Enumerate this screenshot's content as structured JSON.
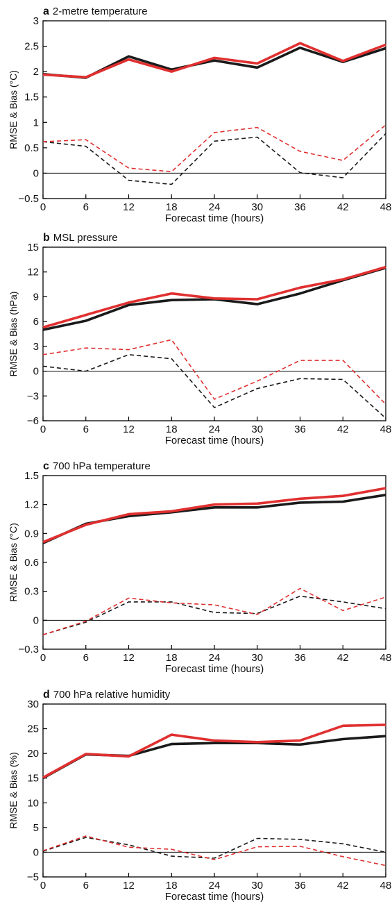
{
  "chart_data": [
    {
      "type": "line",
      "panel_letter": "a",
      "title": "2-metre temperature",
      "xlabel": "Forecast time (hours)",
      "ylabel": "RMSE & Bias (°C)",
      "x": [
        0,
        6,
        12,
        18,
        24,
        30,
        36,
        42,
        48
      ],
      "ylim": [
        -0.5,
        3
      ],
      "yticks": [
        -0.5,
        0,
        0.5,
        1,
        1.5,
        2,
        2.5,
        3
      ],
      "ytick_labels": [
        "−0.5",
        "0",
        "0.5",
        "1",
        "1.5",
        "2",
        "2.5",
        "3"
      ],
      "zero_line": true,
      "series": [
        {
          "color": "#1a1a1a",
          "style": "solid",
          "values": [
            1.95,
            1.88,
            2.3,
            2.04,
            2.22,
            2.08,
            2.47,
            2.19,
            2.46
          ]
        },
        {
          "color": "#e03030",
          "style": "solid",
          "values": [
            1.94,
            1.89,
            2.24,
            2.0,
            2.27,
            2.16,
            2.56,
            2.21,
            2.53
          ]
        },
        {
          "color": "#1a1a1a",
          "style": "dashed",
          "values": [
            0.62,
            0.53,
            -0.14,
            -0.22,
            0.63,
            0.71,
            0.01,
            -0.09,
            0.78
          ]
        },
        {
          "color": "#e03030",
          "style": "dashed",
          "values": [
            0.62,
            0.66,
            0.1,
            0.03,
            0.8,
            0.9,
            0.43,
            0.25,
            0.95
          ]
        }
      ]
    },
    {
      "type": "line",
      "panel_letter": "b",
      "title": "MSL pressure",
      "xlabel": "Forecast time (hours)",
      "ylabel": "RMSE & Bias (hPa)",
      "x": [
        0,
        6,
        12,
        18,
        24,
        30,
        36,
        42,
        48
      ],
      "ylim": [
        -6,
        15
      ],
      "yticks": [
        -6,
        -3,
        0,
        3,
        6,
        9,
        12,
        15
      ],
      "ytick_labels": [
        "−6",
        "−3",
        "0",
        "3",
        "6",
        "9",
        "12",
        "15"
      ],
      "zero_line": true,
      "series": [
        {
          "color": "#1a1a1a",
          "style": "solid",
          "values": [
            5.0,
            6.1,
            8.0,
            8.6,
            8.7,
            8.1,
            9.4,
            11.0,
            12.5
          ]
        },
        {
          "color": "#e03030",
          "style": "solid",
          "values": [
            5.3,
            6.8,
            8.3,
            9.4,
            8.8,
            8.7,
            10.1,
            11.1,
            12.6
          ]
        },
        {
          "color": "#1a1a1a",
          "style": "dashed",
          "values": [
            0.6,
            0.0,
            2.0,
            1.5,
            -4.4,
            -2.1,
            -0.9,
            -1.0,
            -5.7
          ]
        },
        {
          "color": "#e03030",
          "style": "dashed",
          "values": [
            2.0,
            2.8,
            2.6,
            3.8,
            -3.4,
            -1.2,
            1.3,
            1.3,
            -4.0
          ]
        }
      ]
    },
    {
      "type": "line",
      "panel_letter": "c",
      "title": "700 hPa temperature",
      "xlabel": "Forecast time (hours)",
      "ylabel": "RMSE & Bias (°C)",
      "x": [
        0,
        6,
        12,
        18,
        24,
        30,
        36,
        42,
        48
      ],
      "ylim": [
        -0.3,
        1.5
      ],
      "yticks": [
        -0.3,
        0,
        0.3,
        0.6,
        0.9,
        1.2,
        1.5
      ],
      "ytick_labels": [
        "−0.3",
        "0",
        "0.3",
        "0.6",
        "0.9",
        "1.2",
        "1.5"
      ],
      "zero_line": true,
      "series": [
        {
          "color": "#1a1a1a",
          "style": "solid",
          "values": [
            0.8,
            1.0,
            1.08,
            1.12,
            1.17,
            1.17,
            1.22,
            1.23,
            1.3
          ]
        },
        {
          "color": "#e03030",
          "style": "solid",
          "values": [
            0.81,
            0.99,
            1.1,
            1.13,
            1.2,
            1.21,
            1.26,
            1.29,
            1.37
          ]
        },
        {
          "color": "#1a1a1a",
          "style": "dashed",
          "values": [
            -0.15,
            -0.02,
            0.19,
            0.19,
            0.08,
            0.07,
            0.25,
            0.19,
            0.12
          ]
        },
        {
          "color": "#e03030",
          "style": "dashed",
          "values": [
            -0.15,
            -0.01,
            0.23,
            0.18,
            0.16,
            0.06,
            0.33,
            0.1,
            0.24
          ]
        }
      ]
    },
    {
      "type": "line",
      "panel_letter": "d",
      "title": "700 hPa relative humidity",
      "xlabel": "Forecast time (hours)",
      "ylabel": "RMSE & Bias (%)",
      "x": [
        0,
        6,
        12,
        18,
        24,
        30,
        36,
        42,
        48
      ],
      "ylim": [
        -5,
        30
      ],
      "yticks": [
        -5,
        0,
        5,
        10,
        15,
        20,
        25,
        30
      ],
      "ytick_labels": [
        "−5",
        "0",
        "5",
        "10",
        "15",
        "20",
        "25",
        "30"
      ],
      "zero_line": true,
      "series": [
        {
          "color": "#1a1a1a",
          "style": "solid",
          "values": [
            15.0,
            19.8,
            19.5,
            21.9,
            22.1,
            22.1,
            21.8,
            22.9,
            23.5
          ]
        },
        {
          "color": "#e03030",
          "style": "solid",
          "values": [
            15.1,
            19.9,
            19.4,
            23.8,
            22.6,
            22.3,
            22.6,
            25.6,
            25.8
          ]
        },
        {
          "color": "#1a1a1a",
          "style": "dashed",
          "values": [
            0.2,
            3.0,
            1.5,
            -0.8,
            -1.2,
            2.8,
            2.6,
            1.7,
            0.0
          ]
        },
        {
          "color": "#e03030",
          "style": "dashed",
          "values": [
            0.3,
            3.3,
            1.0,
            0.6,
            -1.5,
            1.1,
            1.2,
            -0.9,
            -2.7
          ]
        }
      ]
    }
  ]
}
